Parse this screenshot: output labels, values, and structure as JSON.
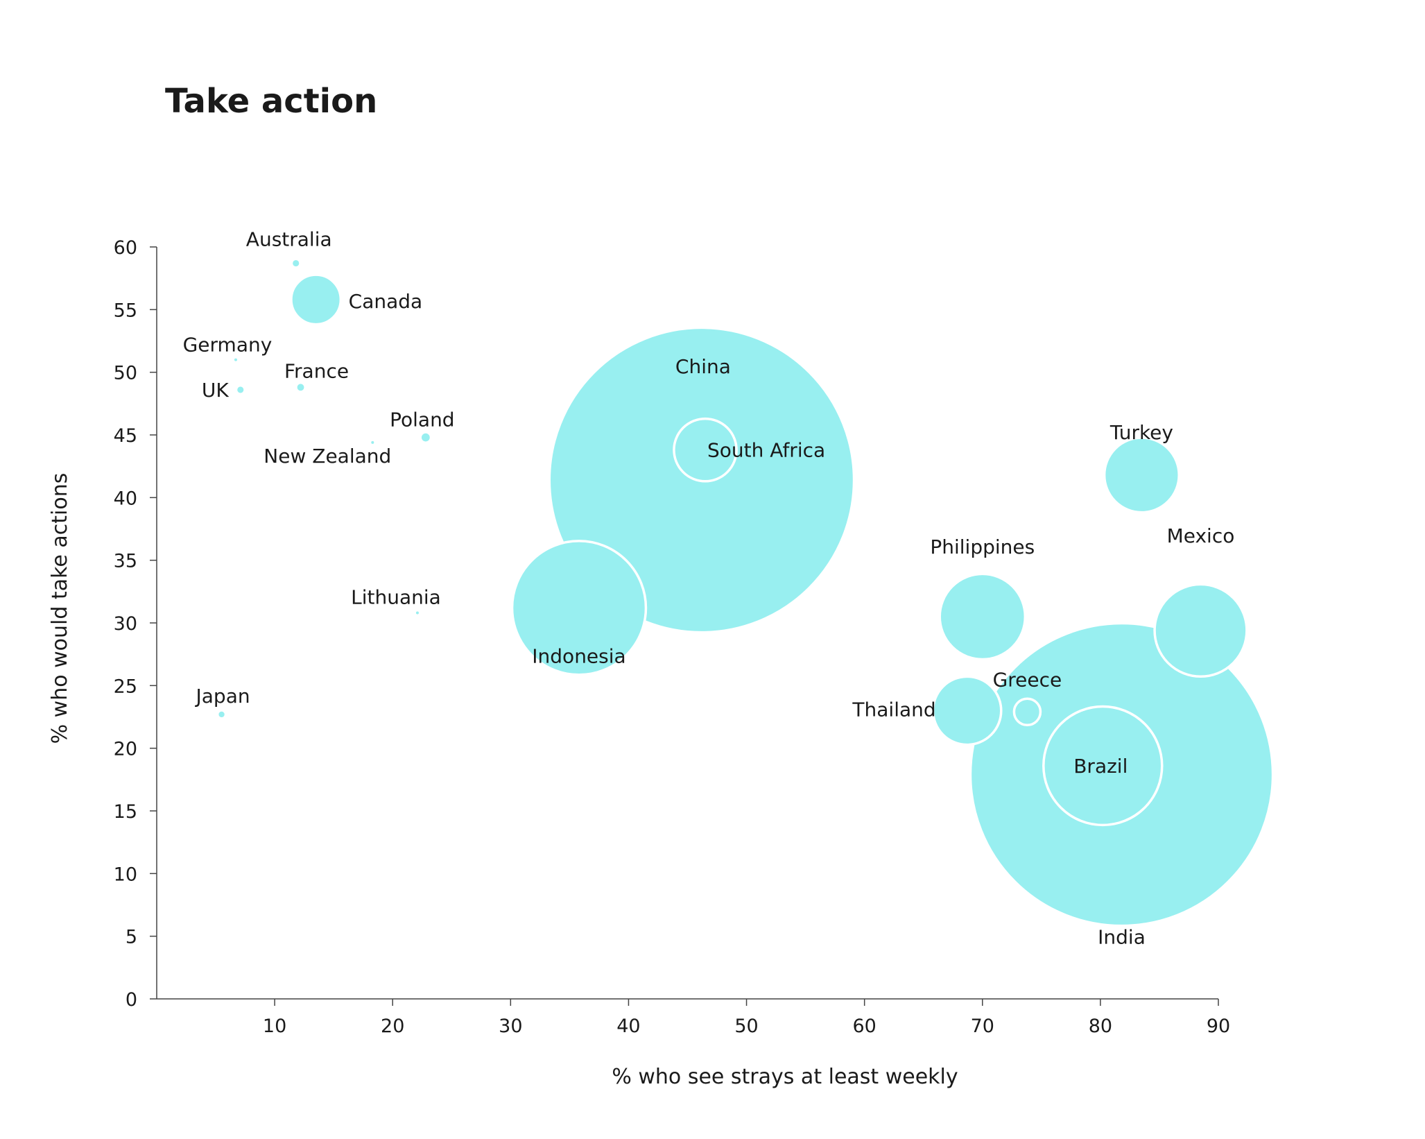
{
  "chart_data": {
    "type": "scatter",
    "title": "Take action",
    "xlabel": "% who see strays at least weekly",
    "ylabel": "% who would take actions",
    "xlim": [
      0,
      90
    ],
    "ylim": [
      0,
      60
    ],
    "xticks": [
      10,
      20,
      30,
      40,
      50,
      60,
      70,
      80,
      90
    ],
    "yticks": [
      0,
      5,
      10,
      15,
      20,
      25,
      30,
      35,
      40,
      45,
      50,
      55,
      60
    ],
    "bubble_color": "#98eff0",
    "outline_color": "#ffffff",
    "grid": false,
    "points": [
      {
        "label": "Australia",
        "x": 11.8,
        "y": 58.7,
        "size": 0.6
      },
      {
        "label": "Canada",
        "x": 13.5,
        "y": 55.8,
        "size": 37
      },
      {
        "label": "Germany",
        "x": 6.7,
        "y": 51.0,
        "size": 0.12
      },
      {
        "label": "France",
        "x": 12.2,
        "y": 48.8,
        "size": 0.7
      },
      {
        "label": "UK",
        "x": 7.1,
        "y": 48.6,
        "size": 0.6
      },
      {
        "label": "Poland",
        "x": 22.8,
        "y": 44.8,
        "size": 1.0
      },
      {
        "label": "New Zealand",
        "x": 18.3,
        "y": 44.4,
        "size": 0.08
      },
      {
        "label": "Lithuania",
        "x": 22.1,
        "y": 30.8,
        "size": 0.02
      },
      {
        "label": "Japan",
        "x": 5.5,
        "y": 22.7,
        "size": 0.5
      },
      {
        "label": "China",
        "x": 46.2,
        "y": 41.4,
        "size": 1400
      },
      {
        "label": "South Africa",
        "x": 46.5,
        "y": 43.8,
        "size": 59
      },
      {
        "label": "Indonesia",
        "x": 35.8,
        "y": 31.2,
        "size": 270
      },
      {
        "label": "Turkey",
        "x": 83.5,
        "y": 41.8,
        "size": 84
      },
      {
        "label": "Philippines",
        "x": 70.0,
        "y": 30.5,
        "size": 110
      },
      {
        "label": "India",
        "x": 81.8,
        "y": 17.9,
        "size": 1380
      },
      {
        "label": "Mexico",
        "x": 88.5,
        "y": 29.4,
        "size": 128
      },
      {
        "label": "Thailand",
        "x": 68.7,
        "y": 23.0,
        "size": 70
      },
      {
        "label": "Greece",
        "x": 73.8,
        "y": 22.9,
        "size": 10.5
      },
      {
        "label": "Brazil",
        "x": 80.2,
        "y": 18.6,
        "size": 212
      }
    ]
  }
}
